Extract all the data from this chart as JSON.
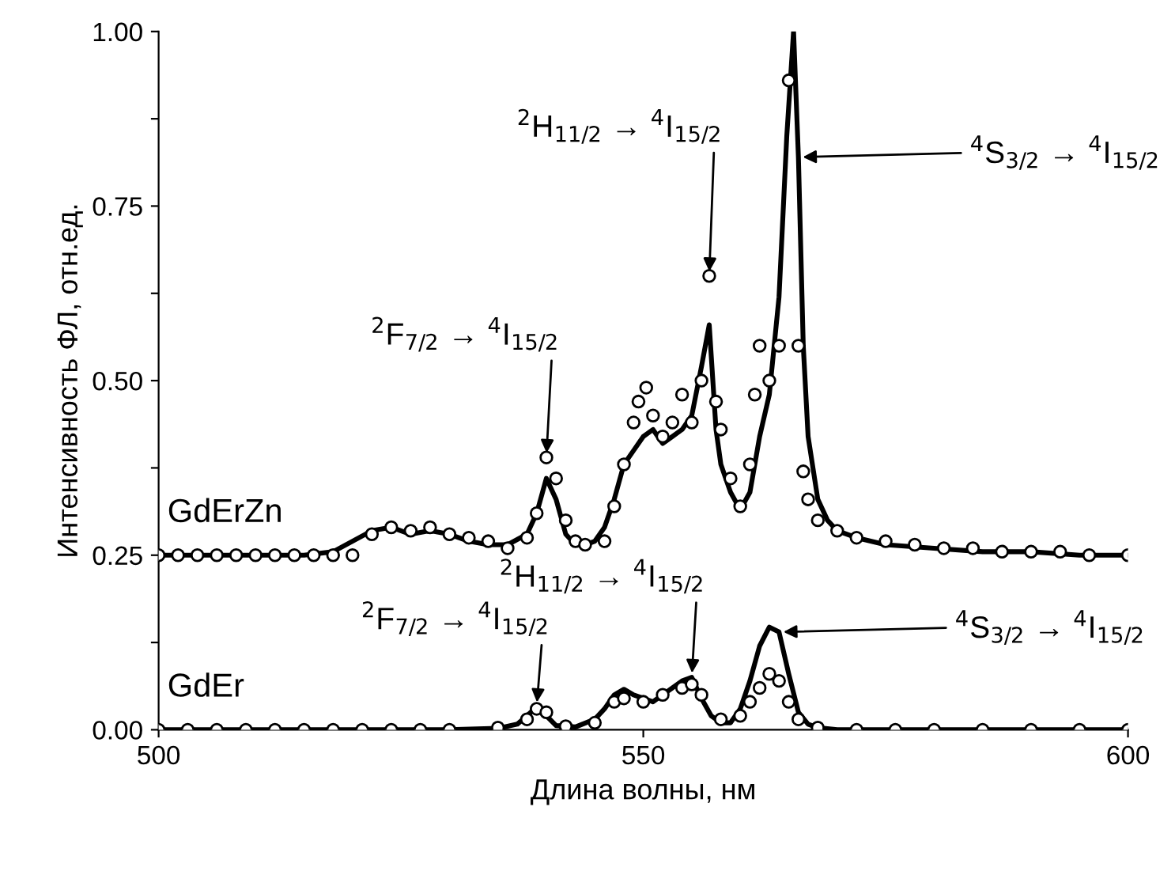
{
  "chart_data": {
    "type": "line",
    "xlabel": "Длина волны, нм",
    "ylabel": "Интенсивность ФЛ, отн.ед.",
    "xlim": [
      500,
      600
    ],
    "xticks": [
      500,
      550,
      600
    ],
    "ylim": [
      0,
      1.0
    ],
    "yticks": [
      {
        "value": 0,
        "label": "0.00"
      },
      {
        "value": 0.125,
        "label": null
      },
      {
        "value": 0.25,
        "label": "0.25"
      },
      {
        "value": 0.375,
        "label": null
      },
      {
        "value": 0.5,
        "label": "0.50"
      },
      {
        "value": 0.625,
        "label": null
      },
      {
        "value": 0.75,
        "label": "0.75"
      },
      {
        "value": 0.875,
        "label": null
      },
      {
        "value": 1.0,
        "label": "1.00"
      }
    ],
    "grid": false,
    "series": [
      {
        "name": "GdErZn",
        "type": "scatter",
        "marker": "circle",
        "color": "#000000",
        "x": [
          500,
          502,
          504,
          506,
          508,
          510,
          512,
          514,
          516,
          518,
          520,
          522,
          524,
          526,
          528,
          530,
          532,
          534,
          536,
          538,
          539,
          540,
          541,
          542,
          543,
          544,
          546,
          547,
          548,
          549,
          549.5,
          550.3,
          551,
          552,
          553,
          554,
          555,
          556,
          556.8,
          557.5,
          558,
          559,
          560,
          561,
          561.5,
          562,
          563,
          564,
          565,
          566,
          566.5,
          567,
          568,
          570,
          572,
          575,
          578,
          581,
          584,
          587,
          590,
          593,
          596,
          600
        ],
        "values": [
          0.25,
          0.25,
          0.25,
          0.25,
          0.25,
          0.25,
          0.25,
          0.25,
          0.25,
          0.25,
          0.25,
          0.28,
          0.29,
          0.285,
          0.29,
          0.28,
          0.275,
          0.27,
          0.26,
          0.275,
          0.31,
          0.39,
          0.36,
          0.3,
          0.27,
          0.265,
          0.27,
          0.32,
          0.38,
          0.44,
          0.47,
          0.49,
          0.45,
          0.42,
          0.44,
          0.48,
          0.44,
          0.5,
          0.65,
          0.47,
          0.43,
          0.36,
          0.32,
          0.38,
          0.48,
          0.55,
          0.5,
          0.55,
          0.93,
          0.55,
          0.37,
          0.33,
          0.3,
          0.285,
          0.275,
          0.27,
          0.265,
          0.26,
          0.26,
          0.255,
          0.255,
          0.255,
          0.25,
          0.25
        ]
      },
      {
        "marker": "none",
        "line_style": "solid",
        "color": "#000000",
        "x": [
          500,
          505,
          510,
          515,
          518,
          520,
          522,
          524,
          526,
          528,
          530,
          532,
          534,
          536,
          538,
          539,
          540,
          541,
          542,
          543,
          544,
          545,
          546,
          547,
          548,
          549,
          550,
          551,
          552,
          553,
          554,
          555,
          556,
          556.8,
          557.5,
          558,
          559,
          560,
          561,
          562,
          563,
          564,
          564.8,
          565.5,
          566,
          566.5,
          567,
          568,
          569,
          570,
          572,
          575,
          580,
          585,
          590,
          595,
          600
        ],
        "values": [
          0.25,
          0.25,
          0.25,
          0.25,
          0.255,
          0.27,
          0.285,
          0.29,
          0.28,
          0.285,
          0.28,
          0.27,
          0.265,
          0.265,
          0.28,
          0.31,
          0.36,
          0.33,
          0.28,
          0.265,
          0.265,
          0.27,
          0.29,
          0.33,
          0.38,
          0.4,
          0.42,
          0.43,
          0.41,
          0.42,
          0.43,
          0.45,
          0.52,
          0.58,
          0.43,
          0.38,
          0.34,
          0.315,
          0.34,
          0.42,
          0.48,
          0.62,
          0.85,
          1.0,
          0.82,
          0.55,
          0.42,
          0.33,
          0.3,
          0.285,
          0.275,
          0.265,
          0.26,
          0.255,
          0.255,
          0.25,
          0.25
        ]
      },
      {
        "name": "GdEr",
        "type": "scatter",
        "marker": "circle",
        "color": "#000000",
        "x": [
          500,
          503,
          506,
          509,
          512,
          515,
          518,
          521,
          524,
          527,
          530,
          535,
          538,
          539,
          540,
          542,
          545,
          547,
          548,
          550,
          552,
          554,
          555,
          556,
          558,
          560,
          561,
          562,
          563,
          564,
          565,
          566,
          568,
          572,
          576,
          580,
          585,
          590,
          595,
          600
        ],
        "values": [
          0,
          0,
          0,
          0,
          0,
          0,
          0,
          0,
          0,
          0,
          0,
          0.003,
          0.015,
          0.03,
          0.025,
          0.005,
          0.01,
          0.04,
          0.045,
          0.04,
          0.05,
          0.06,
          0.065,
          0.05,
          0.015,
          0.02,
          0.04,
          0.06,
          0.08,
          0.07,
          0.04,
          0.015,
          0.003,
          0,
          0,
          0,
          0,
          0,
          0,
          0
        ]
      },
      {
        "marker": "none",
        "line_style": "solid",
        "color": "#000000",
        "x": [
          500,
          520,
          530,
          535,
          537,
          538,
          539,
          540,
          541,
          543,
          545,
          546,
          547,
          548,
          549,
          550,
          551,
          552,
          553,
          554,
          555,
          556,
          557,
          558,
          559,
          560,
          561,
          562,
          563,
          564,
          565,
          566,
          567,
          568,
          570,
          580,
          600
        ],
        "values": [
          0,
          0,
          0,
          0.002,
          0.008,
          0.02,
          0.033,
          0.02,
          0.006,
          0.004,
          0.015,
          0.03,
          0.05,
          0.058,
          0.05,
          0.045,
          0.04,
          0.05,
          0.06,
          0.07,
          0.075,
          0.045,
          0.02,
          0.01,
          0.01,
          0.03,
          0.07,
          0.12,
          0.147,
          0.14,
          0.08,
          0.025,
          0.008,
          0.003,
          0,
          0,
          0
        ]
      }
    ],
    "annotations": [
      {
        "text": "$^{2}$F$_{7/2}$ → $^{4}$I$_{15/2}$",
        "x": 540,
        "y": 0.39
      },
      {
        "text": "$^{2}$H$_{11/2}$ → $^{4}$I$_{15/2}$",
        "x": 556.8,
        "y": 0.65
      },
      {
        "text": "$^{4}$S$_{3/2}$ → $^{4}$I$_{15/2}$",
        "x": 566,
        "y": 0.82
      },
      {
        "text": "$^{2}$F$_{7/2}$ → $^{4}$I$_{15/2}$",
        "x": 539,
        "y": 0.033
      },
      {
        "text": "$^{2}$H$_{11/2}$ → $^{4}$I$_{15/2}$",
        "x": 555,
        "y": 0.075
      },
      {
        "text": "$^{4}$S$_{3/2}$ → $^{4}$I$_{15/2}$",
        "x": 564,
        "y": 0.14
      }
    ]
  }
}
